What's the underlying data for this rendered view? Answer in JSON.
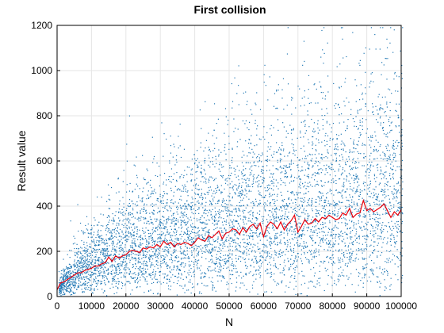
{
  "chart_data": {
    "type": "scatter",
    "title": "First collision",
    "xlabel": "N",
    "ylabel": "Result value",
    "xlim": [
      0,
      100000
    ],
    "ylim": [
      0,
      1200
    ],
    "xticks": [
      0,
      10000,
      20000,
      30000,
      40000,
      50000,
      60000,
      70000,
      80000,
      90000,
      100000
    ],
    "yticks": [
      0,
      200,
      400,
      600,
      800,
      1000,
      1200
    ],
    "grid": true,
    "colors": {
      "scatter": "#1f77b4",
      "mean": "#e8000b"
    },
    "series": [
      {
        "kind": "scatter",
        "sampling": "random samples per N, roughly sqrt(pi*N/2) scale, ~60 points per x step",
        "x_step": 1000,
        "points_per_x": 60
      },
      {
        "kind": "line",
        "x": [
          0,
          1000,
          2000,
          3000,
          4000,
          5000,
          6000,
          7000,
          8000,
          9000,
          10000,
          11000,
          12000,
          13000,
          14000,
          15000,
          16000,
          17000,
          18000,
          19000,
          20000,
          21000,
          22000,
          23000,
          24000,
          25000,
          26000,
          27000,
          28000,
          29000,
          30000,
          31000,
          32000,
          33000,
          34000,
          35000,
          36000,
          37000,
          38000,
          39000,
          40000,
          41000,
          42000,
          43000,
          44000,
          45000,
          46000,
          47000,
          48000,
          49000,
          50000,
          51000,
          52000,
          53000,
          54000,
          55000,
          56000,
          57000,
          58000,
          59000,
          60000,
          61000,
          62000,
          63000,
          64000,
          65000,
          66000,
          67000,
          68000,
          69000,
          70000,
          71000,
          72000,
          73000,
          74000,
          75000,
          76000,
          77000,
          78000,
          79000,
          80000,
          81000,
          82000,
          83000,
          84000,
          85000,
          86000,
          87000,
          88000,
          89000,
          90000,
          91000,
          92000,
          93000,
          94000,
          95000,
          96000,
          97000,
          98000,
          99000,
          100000
        ],
        "values": [
          30,
          60,
          65,
          75,
          85,
          95,
          105,
          105,
          115,
          120,
          125,
          135,
          135,
          145,
          150,
          175,
          155,
          180,
          170,
          180,
          185,
          200,
          205,
          200,
          195,
          215,
          210,
          220,
          215,
          230,
          220,
          245,
          230,
          240,
          220,
          235,
          230,
          240,
          235,
          225,
          240,
          260,
          250,
          245,
          270,
          260,
          275,
          290,
          255,
          280,
          285,
          300,
          295,
          275,
          305,
          285,
          310,
          320,
          300,
          325,
          265,
          310,
          330,
          320,
          300,
          330,
          295,
          320,
          335,
          360,
          285,
          310,
          340,
          320,
          325,
          345,
          330,
          350,
          345,
          360,
          350,
          340,
          345,
          370,
          360,
          390,
          350,
          365,
          370,
          425,
          380,
          390,
          375,
          385,
          395,
          410,
          380,
          350,
          375,
          360,
          385
        ]
      }
    ]
  }
}
